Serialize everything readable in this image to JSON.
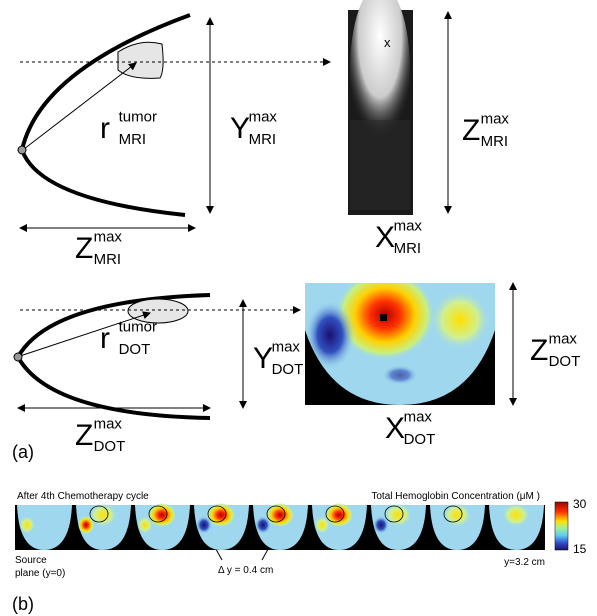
{
  "panel_a": {
    "label": "(a)",
    "mri": {
      "r": {
        "symbol": "r",
        "sup": "tumor",
        "sub": "MRI"
      },
      "y": {
        "symbol": "Y",
        "sup": "max",
        "sub": "MRI"
      },
      "z_bottom": {
        "symbol": "Z",
        "sup": "max",
        "sub": "MRI"
      },
      "x": {
        "symbol": "X",
        "sup": "max",
        "sub": "MRI"
      },
      "z_right": {
        "symbol": "Z",
        "sup": "max",
        "sub": "MRI"
      },
      "marker": "x"
    },
    "dot": {
      "r": {
        "symbol": "r",
        "sup": "tumor",
        "sub": "DOT"
      },
      "y": {
        "symbol": "Y",
        "sup": "max",
        "sub": "DOT"
      },
      "z_bottom": {
        "symbol": "Z",
        "sup": "max",
        "sub": "DOT"
      },
      "x": {
        "symbol": "X",
        "sup": "max",
        "sub": "DOT"
      },
      "z_right": {
        "symbol": "Z",
        "sup": "max",
        "sub": "DOT"
      }
    }
  },
  "panel_b": {
    "label": "(b)",
    "left_title": "After 4th Chemotherapy cycle",
    "right_title": "Total Hemoglobin Concentration (μM )",
    "colorbar_ticks": [
      30,
      15
    ],
    "source_line1": "Source",
    "source_line2": "plane (y=0)",
    "step": "Δ y = 0.4 cm",
    "last": "y=3.2 cm"
  }
}
